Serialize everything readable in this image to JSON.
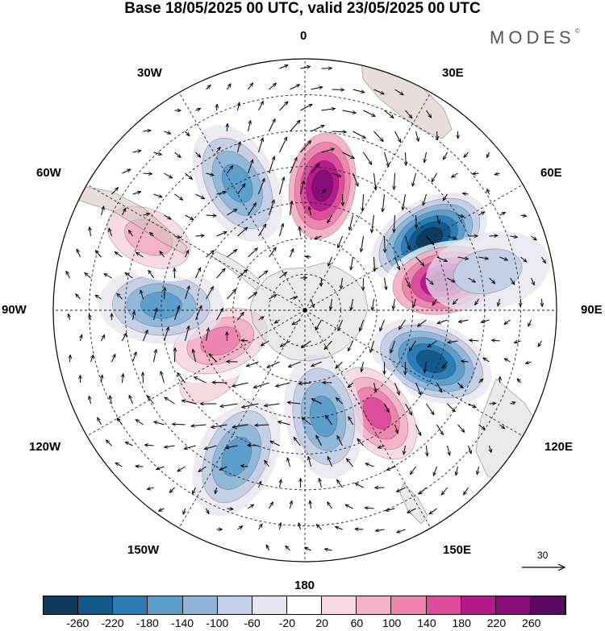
{
  "header": {
    "title": "Base 18/05/2025 00 UTC, valid 23/05/2025 00 UTC",
    "brand": "MODES",
    "brand_mark": "©"
  },
  "map": {
    "projection": "south-polar-stereographic",
    "meridian_labels": {
      "m0": "0",
      "m30e": "30E",
      "m60e": "60E",
      "m90e": "90E",
      "m120e": "120E",
      "m150e": "150E",
      "m180": "180",
      "m150w": "150W",
      "m120w": "120W",
      "m90w": "90W",
      "m60w": "60W",
      "m30w": "30W"
    },
    "anomaly_centers": [
      {
        "lon": 60,
        "lat": -50,
        "value": -260
      },
      {
        "lon": 78,
        "lat": -50,
        "value": 240
      },
      {
        "lon": 112,
        "lat": -52,
        "value": -240
      },
      {
        "lon": 145,
        "lat": -55,
        "value": 180
      },
      {
        "lon": 170,
        "lat": -60,
        "value": -140
      },
      {
        "lon": -155,
        "lat": -45,
        "value": -140
      },
      {
        "lon": -125,
        "lat": -58,
        "value": 60
      },
      {
        "lon": -110,
        "lat": -65,
        "value": 140
      },
      {
        "lon": -88,
        "lat": -50,
        "value": -160
      },
      {
        "lon": -65,
        "lat": -42,
        "value": 100
      },
      {
        "lon": -28,
        "lat": -50,
        "value": -160
      },
      {
        "lon": 8,
        "lat": -55,
        "value": 240
      },
      {
        "lon": 78,
        "lat": -38,
        "value": -60
      }
    ],
    "colors": {
      "land": "#e6e6e6",
      "grid": "#222222"
    },
    "vector_reference": "30"
  },
  "colorbar": {
    "labels": [
      "-260",
      "-220",
      "-180",
      "-140",
      "-100",
      "-60",
      "-20",
      "20",
      "60",
      "100",
      "140",
      "180",
      "220",
      "260"
    ],
    "colors": [
      "#0e3b5e",
      "#12598a",
      "#2c7bb3",
      "#5b9dcb",
      "#8fb6d9",
      "#c3cfe6",
      "#e6e4f0",
      "#ffffff",
      "#f8d9e1",
      "#f3b1c7",
      "#ec84ae",
      "#dc4c9a",
      "#b41a8a",
      "#870d77",
      "#5a0a63"
    ]
  }
}
